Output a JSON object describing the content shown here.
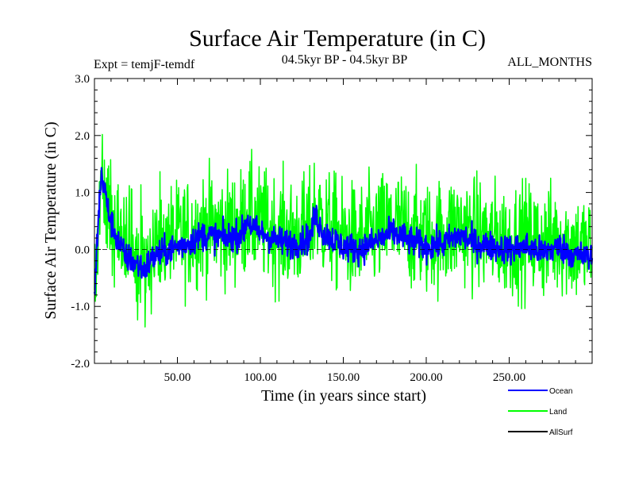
{
  "chart_data": {
    "type": "line",
    "title": "Surface Air Temperature (in C)",
    "subtitle_left": "Expt = temjF-temdf",
    "subtitle_center": "04.5kyr BP - 04.5kyr BP",
    "subtitle_right": "ALL_MONTHS",
    "xlabel": "Time (in years since start)",
    "ylabel": "Surface Air Temperature (in C)",
    "xlim": [
      0,
      300
    ],
    "ylim": [
      -2.0,
      3.0
    ],
    "x_ticks": [
      50,
      100,
      150,
      200,
      250
    ],
    "x_tick_labels": [
      "50.00",
      "100.00",
      "150.00",
      "200.00",
      "250.00"
    ],
    "y_ticks": [
      -2.0,
      -1.0,
      0.0,
      1.0,
      2.0,
      3.0
    ],
    "y_tick_labels": [
      "-2.0",
      "-1.0",
      "0.0",
      "1.0",
      "2.0",
      "3.0"
    ],
    "zero_line": true,
    "x_step": 0.25,
    "legend_position": "bottom-right",
    "series": [
      {
        "name": "Ocean",
        "color": "#0000ff",
        "knots": [
          [
            0,
            -0.9
          ],
          [
            2,
            0.4
          ],
          [
            4,
            1.3
          ],
          [
            6,
            1.1
          ],
          [
            8,
            0.7
          ],
          [
            12,
            0.3
          ],
          [
            18,
            -0.1
          ],
          [
            25,
            -0.25
          ],
          [
            30,
            -0.35
          ],
          [
            35,
            -0.15
          ],
          [
            45,
            0.0
          ],
          [
            55,
            0.1
          ],
          [
            65,
            0.25
          ],
          [
            80,
            0.2
          ],
          [
            90,
            0.3
          ],
          [
            92,
            0.55
          ],
          [
            96,
            0.35
          ],
          [
            110,
            0.15
          ],
          [
            120,
            0.1
          ],
          [
            130,
            0.2
          ],
          [
            133,
            0.6
          ],
          [
            138,
            0.3
          ],
          [
            150,
            0.05
          ],
          [
            160,
            0.0
          ],
          [
            170,
            0.15
          ],
          [
            180,
            0.3
          ],
          [
            190,
            0.15
          ],
          [
            200,
            0.05
          ],
          [
            210,
            0.1
          ],
          [
            220,
            0.25
          ],
          [
            230,
            0.1
          ],
          [
            240,
            0.05
          ],
          [
            250,
            0.0
          ],
          [
            260,
            0.05
          ],
          [
            270,
            -0.05
          ],
          [
            280,
            0.05
          ],
          [
            290,
            -0.1
          ],
          [
            300,
            -0.15
          ]
        ],
        "noise": 0.13
      },
      {
        "name": "Land",
        "color": "#00ff00",
        "knots": [
          [
            0,
            -0.9
          ],
          [
            2,
            0.4
          ],
          [
            4,
            1.2
          ],
          [
            6,
            1.1
          ],
          [
            8,
            0.7
          ],
          [
            12,
            0.35
          ],
          [
            18,
            0.0
          ],
          [
            25,
            -0.1
          ],
          [
            30,
            -0.2
          ],
          [
            35,
            0.0
          ],
          [
            45,
            0.15
          ],
          [
            55,
            0.25
          ],
          [
            65,
            0.4
          ],
          [
            80,
            0.35
          ],
          [
            90,
            0.45
          ],
          [
            92,
            0.65
          ],
          [
            96,
            0.5
          ],
          [
            110,
            0.3
          ],
          [
            120,
            0.25
          ],
          [
            130,
            0.35
          ],
          [
            133,
            0.75
          ],
          [
            138,
            0.45
          ],
          [
            150,
            0.2
          ],
          [
            160,
            0.15
          ],
          [
            170,
            0.3
          ],
          [
            180,
            0.45
          ],
          [
            190,
            0.3
          ],
          [
            200,
            0.2
          ],
          [
            210,
            0.25
          ],
          [
            220,
            0.4
          ],
          [
            230,
            0.25
          ],
          [
            240,
            0.2
          ],
          [
            250,
            0.15
          ],
          [
            260,
            0.2
          ],
          [
            270,
            0.1
          ],
          [
            280,
            0.2
          ],
          [
            290,
            0.05
          ],
          [
            300,
            0.0
          ]
        ],
        "noise": 0.5
      },
      {
        "name": "AllSurf",
        "color": "#000000",
        "knots": [],
        "noise": 0
      }
    ]
  }
}
